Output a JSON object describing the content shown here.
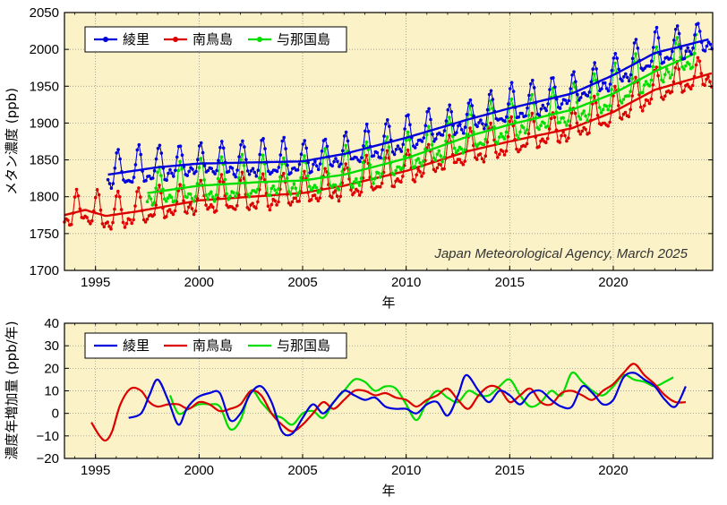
{
  "chart_data": [
    {
      "type": "line",
      "title": "",
      "xlabel": "年",
      "ylabel": "メタン濃度 (ppb)",
      "xlim": [
        1993.5,
        2024.8
      ],
      "ylim": [
        1700,
        2050
      ],
      "xticks": [
        1995,
        2000,
        2005,
        2010,
        2015,
        2020
      ],
      "yticks": [
        1700,
        1750,
        1800,
        1850,
        1900,
        1950,
        2000,
        2050
      ],
      "xtick_labels": [
        "1995",
        "2000",
        "2005",
        "2010",
        "2015",
        "2020"
      ],
      "ytick_labels": [
        "1700",
        "1750",
        "1800",
        "1850",
        "1900",
        "1950",
        "2000",
        "2050"
      ],
      "grid": true,
      "legend_position": "top-left",
      "annotation": "Japan Meteorological Agency, March 2025",
      "series": [
        {
          "name": "綾里",
          "color": "#0000dd",
          "start": 1995.6,
          "end": 2024.8,
          "seasonal_amplitude": 30,
          "trend_x": [
            1995.6,
            1998,
            2000,
            2005,
            2007,
            2010,
            2013,
            2015,
            2018,
            2020,
            2022,
            2024.8
          ],
          "trend_y": [
            1830,
            1840,
            1845,
            1848,
            1858,
            1880,
            1905,
            1920,
            1940,
            1965,
            1995,
            2015
          ]
        },
        {
          "name": "南鳥島",
          "color": "#dd0000",
          "start": 1993.5,
          "end": 2024.8,
          "seasonal_amplitude": 30,
          "trend_x": [
            1993.5,
            1994.5,
            1995.5,
            1997,
            2000,
            2005,
            2007,
            2010,
            2013,
            2015,
            2018,
            2020,
            2022,
            2024.8
          ],
          "trend_y": [
            1775,
            1782,
            1774,
            1780,
            1795,
            1805,
            1815,
            1835,
            1862,
            1875,
            1893,
            1915,
            1945,
            1968
          ]
        },
        {
          "name": "与那国島",
          "color": "#00dd00",
          "start": 1997.5,
          "end": 2024.0,
          "seasonal_amplitude": 36,
          "trend_x": [
            1997.5,
            2000,
            2003,
            2005,
            2007,
            2010,
            2013,
            2015,
            2018,
            2020,
            2022,
            2024
          ],
          "trend_y": [
            1805,
            1815,
            1820,
            1822,
            1830,
            1852,
            1882,
            1898,
            1918,
            1940,
            1970,
            1995
          ]
        }
      ]
    },
    {
      "type": "line",
      "title": "",
      "xlabel": "年",
      "ylabel": "濃度年増加量 (ppb/年)",
      "xlim": [
        1993.5,
        2024.8
      ],
      "ylim": [
        -20,
        40
      ],
      "xticks": [
        1995,
        2000,
        2005,
        2010,
        2015,
        2020
      ],
      "yticks": [
        -20,
        -10,
        0,
        10,
        20,
        30,
        40
      ],
      "xtick_labels": [
        "1995",
        "2000",
        "2005",
        "2010",
        "2015",
        "2020"
      ],
      "ytick_labels": [
        "−20",
        "−10",
        "0",
        "10",
        "20",
        "30",
        "40"
      ],
      "grid": true,
      "legend_position": "top-left",
      "series": [
        {
          "name": "綾里",
          "color": "#0000dd",
          "x": [
            1996.6,
            1997.2,
            1997.6,
            1998.0,
            1998.5,
            1999.0,
            1999.4,
            1999.9,
            2000.5,
            2001.0,
            2001.5,
            2002.0,
            2002.5,
            2003.0,
            2003.5,
            2004.0,
            2004.5,
            2005.0,
            2005.5,
            2006.0,
            2006.5,
            2007.0,
            2007.5,
            2008.0,
            2008.5,
            2009.0,
            2009.5,
            2010.0,
            2010.5,
            2011.0,
            2011.5,
            2012.0,
            2012.5,
            2012.9,
            2013.5,
            2014.0,
            2014.5,
            2015.0,
            2015.5,
            2016.0,
            2016.5,
            2017.0,
            2017.5,
            2018.0,
            2018.5,
            2019.0,
            2019.5,
            2020.0,
            2020.5,
            2021.0,
            2021.5,
            2022.0,
            2022.5,
            2023.0,
            2023.5
          ],
          "y": [
            -2,
            0,
            8,
            15,
            6,
            -5,
            2,
            7,
            9,
            9,
            -3,
            0,
            9,
            12,
            5,
            -8,
            -9,
            -2,
            4,
            0,
            5,
            10,
            8,
            6,
            7,
            3,
            2,
            2,
            0,
            4,
            5,
            -1,
            8,
            17,
            10,
            5,
            10,
            8,
            4,
            9,
            10,
            6,
            3,
            3,
            12,
            9,
            4,
            6,
            16,
            18,
            15,
            12,
            6,
            3,
            12
          ]
        },
        {
          "name": "南鳥島",
          "color": "#dd0000",
          "x": [
            1994.8,
            1995.2,
            1995.5,
            1995.8,
            1996.2,
            1996.7,
            1997.2,
            1997.6,
            1998.0,
            1998.5,
            1999.0,
            1999.5,
            2000.0,
            2000.5,
            2001.0,
            2001.5,
            2002.0,
            2002.5,
            2003.0,
            2003.5,
            2004.0,
            2004.5,
            2005.0,
            2005.5,
            2006.0,
            2006.5,
            2007.0,
            2007.5,
            2008.0,
            2008.5,
            2009.0,
            2009.5,
            2010.0,
            2010.5,
            2011.0,
            2011.5,
            2012.0,
            2012.5,
            2013.0,
            2013.5,
            2014.0,
            2014.5,
            2015.0,
            2015.5,
            2016.0,
            2016.5,
            2017.0,
            2017.5,
            2018.0,
            2018.5,
            2019.0,
            2019.5,
            2020.0,
            2020.5,
            2021.0,
            2021.5,
            2022.0,
            2022.5,
            2023.0,
            2023.5
          ],
          "y": [
            -4,
            -10,
            -12,
            -8,
            4,
            11,
            10,
            5,
            3,
            4,
            4,
            2,
            5,
            4,
            1,
            2,
            4,
            10,
            8,
            0,
            -5,
            -8,
            -5,
            0,
            5,
            2,
            6,
            10,
            10,
            8,
            9,
            7,
            6,
            3,
            6,
            8,
            11,
            6,
            2,
            8,
            12,
            11,
            5,
            8,
            11,
            5,
            4,
            9,
            10,
            8,
            6,
            10,
            13,
            18,
            22,
            17,
            13,
            8,
            5,
            5
          ]
        },
        {
          "name": "与那国島",
          "color": "#00dd00",
          "x": [
            1998.6,
            1999.0,
            1999.5,
            2000.0,
            2000.5,
            2001.0,
            2001.5,
            2002.0,
            2002.5,
            2003.0,
            2003.5,
            2004.0,
            2004.5,
            2005.0,
            2005.5,
            2006.0,
            2006.5,
            2007.0,
            2007.5,
            2008.0,
            2008.5,
            2009.0,
            2009.5,
            2010.0,
            2010.5,
            2011.0,
            2011.5,
            2012.0,
            2012.5,
            2013.0,
            2013.5,
            2014.0,
            2014.5,
            2015.0,
            2015.5,
            2016.0,
            2016.5,
            2017.0,
            2017.5,
            2018.0,
            2018.5,
            2019.0,
            2019.5,
            2020.0,
            2020.5,
            2021.0,
            2021.5,
            2022.0,
            2022.5,
            2022.9
          ],
          "y": [
            8,
            0,
            2,
            4,
            4,
            3,
            -7,
            -3,
            10,
            5,
            0,
            -2,
            -5,
            0,
            1,
            -2,
            5,
            10,
            15,
            14,
            10,
            12,
            11,
            4,
            -3,
            5,
            10,
            7,
            5,
            10,
            8,
            8,
            12,
            15,
            8,
            3,
            5,
            10,
            8,
            18,
            14,
            10,
            8,
            12,
            17,
            15,
            14,
            12,
            14,
            16
          ]
        }
      ]
    }
  ]
}
